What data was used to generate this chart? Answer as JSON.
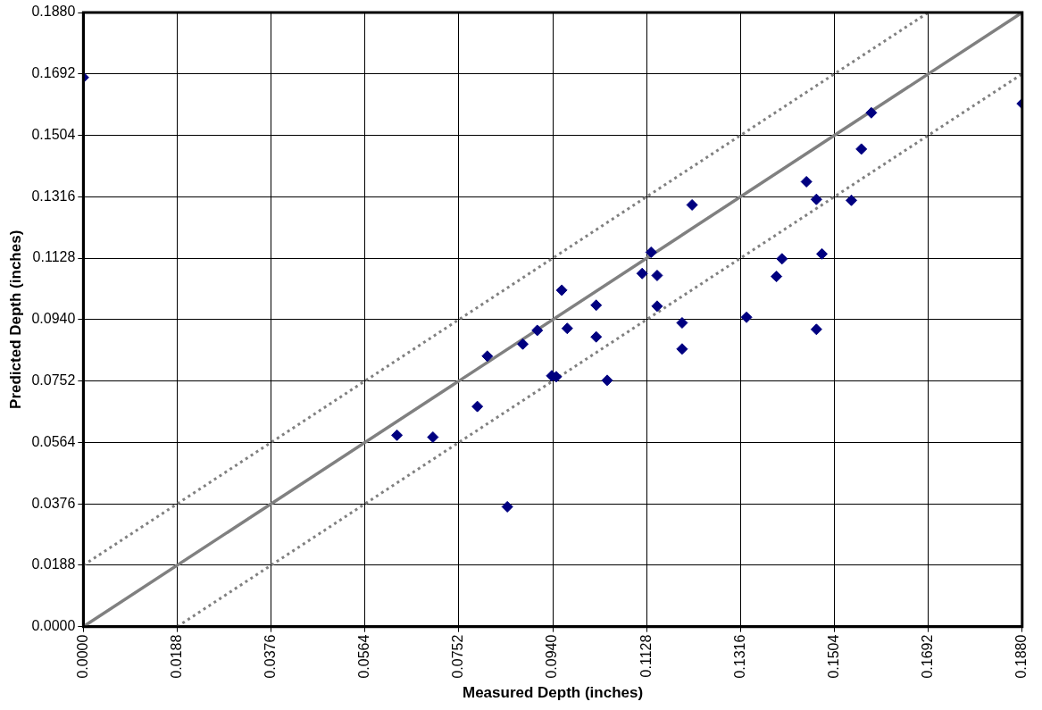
{
  "chart_data": {
    "type": "scatter",
    "xlabel": "Measured Depth (inches)",
    "ylabel": "Predicted Depth (inches)",
    "xlim": [
      0,
      0.188
    ],
    "ylim": [
      0,
      0.188
    ],
    "xticks": [
      {
        "value": 0,
        "label": "0.0000"
      },
      {
        "value": 0.0188,
        "label": "0.0188"
      },
      {
        "value": 0.0376,
        "label": "0.0376"
      },
      {
        "value": 0.0564,
        "label": "0.0564"
      },
      {
        "value": 0.0752,
        "label": "0.0752"
      },
      {
        "value": 0.094,
        "label": "0.0940"
      },
      {
        "value": 0.1128,
        "label": "0.1128"
      },
      {
        "value": 0.1316,
        "label": "0.1316"
      },
      {
        "value": 0.1504,
        "label": "0.1504"
      },
      {
        "value": 0.1692,
        "label": "0.1692"
      },
      {
        "value": 0.188,
        "label": "0.1880"
      }
    ],
    "yticks": [
      {
        "value": 0,
        "label": "0.0000"
      },
      {
        "value": 0.0188,
        "label": "0.0188"
      },
      {
        "value": 0.0376,
        "label": "0.0376"
      },
      {
        "value": 0.0564,
        "label": "0.0564"
      },
      {
        "value": 0.0752,
        "label": "0.0752"
      },
      {
        "value": 0.094,
        "label": "0.0940"
      },
      {
        "value": 0.1128,
        "label": "0.1128"
      },
      {
        "value": 0.1316,
        "label": "0.1316"
      },
      {
        "value": 0.1504,
        "label": "0.1504"
      },
      {
        "value": 0.1692,
        "label": "0.1692"
      },
      {
        "value": 0.188,
        "label": "0.1880"
      }
    ],
    "grid": true,
    "legend": false,
    "series": [
      {
        "type": "scatter",
        "marker": "diamond",
        "color": "#000080",
        "x": [
          0,
          0.188,
          0.0628,
          0.07,
          0.0789,
          0.0809,
          0.0849,
          0.088,
          0.0909,
          0.0938,
          0.0947,
          0.0958,
          0.0969,
          0.1027,
          0.1027,
          0.1049,
          0.1119,
          0.1137,
          0.1149,
          0.1149,
          0.1199,
          0.1199,
          0.1219,
          0.1328,
          0.1388,
          0.1399,
          0.1448,
          0.1468,
          0.1468,
          0.1479,
          0.1538,
          0.1558,
          0.1578
        ],
        "values": [
          0.1681,
          0.1601,
          0.0586,
          0.058,
          0.0674,
          0.0828,
          0.0367,
          0.0865,
          0.0907,
          0.0768,
          0.0765,
          0.103,
          0.0913,
          0.0984,
          0.0887,
          0.0754,
          0.1081,
          0.1146,
          0.1075,
          0.0981,
          0.093,
          0.085,
          0.1291,
          0.0947,
          0.1072,
          0.1126,
          0.1362,
          0.1308,
          0.091,
          0.1141,
          0.1305,
          0.1462,
          0.1573
        ]
      },
      {
        "type": "line",
        "marker": "none",
        "color": "#808080",
        "line_style": "solid",
        "x": [
          0,
          0.188
        ],
        "values": [
          0,
          0.188
        ]
      },
      {
        "type": "line",
        "marker": "none",
        "color": "#808080",
        "line_style": "dotted",
        "x": [
          0,
          0.1692
        ],
        "values": [
          0.0188,
          0.188
        ]
      },
      {
        "type": "line",
        "marker": "none",
        "color": "#808080",
        "line_style": "dotted",
        "x": [
          0.0188,
          0.188
        ],
        "values": [
          0,
          0.1692
        ]
      }
    ]
  }
}
